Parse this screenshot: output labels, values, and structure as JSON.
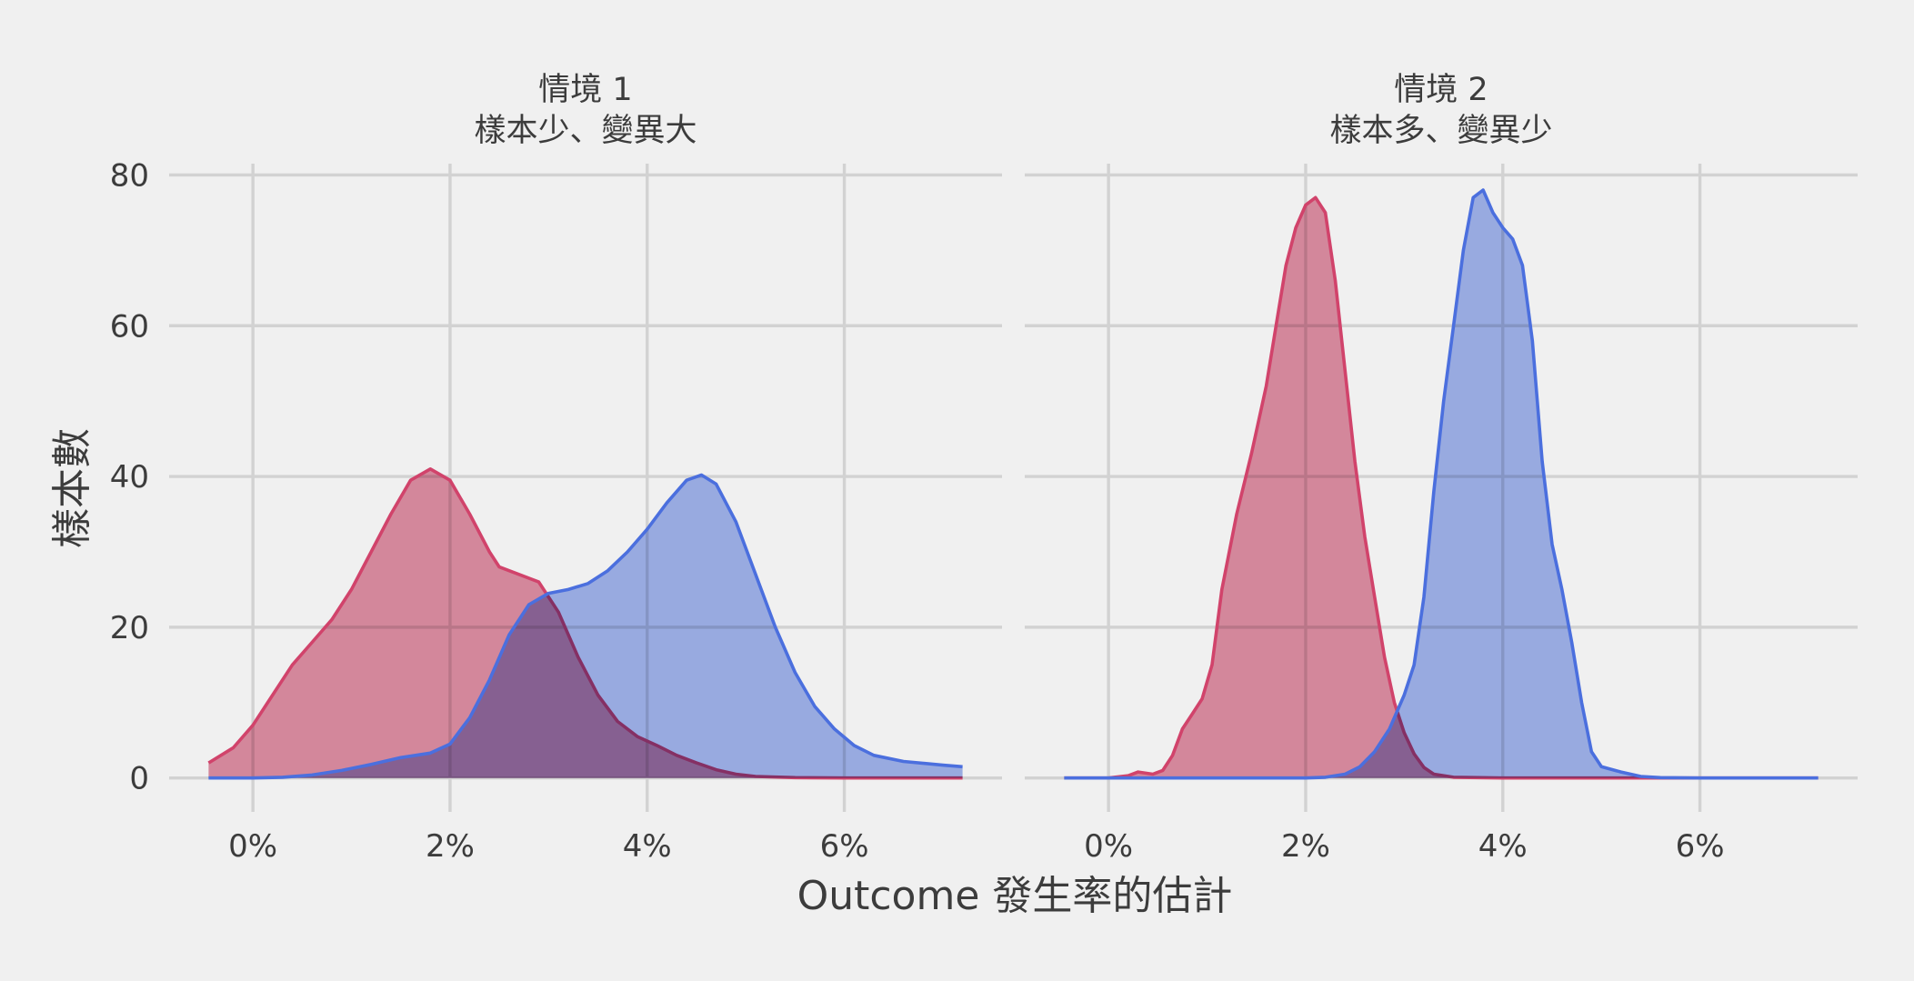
{
  "chart_data": {
    "type": "area",
    "xlabel": "Outcome 發生率的估計",
    "ylabel": "樣本數",
    "x_ticks": [
      "0%",
      "2%",
      "4%",
      "6%"
    ],
    "x_tick_values": [
      0,
      2,
      4,
      6
    ],
    "y_ticks": [
      "0",
      "20",
      "40",
      "60",
      "80"
    ],
    "y_tick_values": [
      0,
      20,
      40,
      60,
      80
    ],
    "xlim": [
      -0.85,
      7.6
    ],
    "ylim": [
      -4.5,
      81.5
    ],
    "grid": true,
    "legend": "none",
    "colors": {
      "red_line": "#d1436b",
      "red_fill": "#dc7b95",
      "blue_line": "#4b6fde",
      "blue_fill": "#8ba3ea",
      "background": "#f0f0f0",
      "grid": "#d2d2d2"
    },
    "panels": [
      {
        "title_line1": "情境 1",
        "title_line2": "樣本少、變異大",
        "series": [
          {
            "color": "red",
            "points": [
              [
                -0.45,
                2
              ],
              [
                -0.2,
                4
              ],
              [
                0,
                7
              ],
              [
                0.2,
                11
              ],
              [
                0.4,
                15
              ],
              [
                0.6,
                18
              ],
              [
                0.8,
                21
              ],
              [
                1.0,
                25
              ],
              [
                1.2,
                30
              ],
              [
                1.4,
                35
              ],
              [
                1.6,
                39.5
              ],
              [
                1.8,
                41
              ],
              [
                2.0,
                39.5
              ],
              [
                2.2,
                35
              ],
              [
                2.4,
                30
              ],
              [
                2.5,
                28
              ],
              [
                2.7,
                27
              ],
              [
                2.9,
                26
              ],
              [
                3.1,
                22
              ],
              [
                3.3,
                16
              ],
              [
                3.5,
                11
              ],
              [
                3.7,
                7.5
              ],
              [
                3.9,
                5.5
              ],
              [
                4.1,
                4.3
              ],
              [
                4.3,
                3
              ],
              [
                4.5,
                2
              ],
              [
                4.7,
                1.1
              ],
              [
                4.9,
                0.5
              ],
              [
                5.1,
                0.2
              ],
              [
                5.5,
                0.05
              ],
              [
                6.0,
                0
              ],
              [
                7.2,
                0
              ]
            ]
          },
          {
            "color": "blue",
            "points": [
              [
                -0.45,
                0
              ],
              [
                0,
                0
              ],
              [
                0.3,
                0.1
              ],
              [
                0.6,
                0.4
              ],
              [
                0.9,
                1
              ],
              [
                1.2,
                1.8
              ],
              [
                1.5,
                2.7
              ],
              [
                1.8,
                3.3
              ],
              [
                2.0,
                4.5
              ],
              [
                2.2,
                8
              ],
              [
                2.4,
                13
              ],
              [
                2.6,
                19
              ],
              [
                2.8,
                23
              ],
              [
                3.0,
                24.5
              ],
              [
                3.2,
                25
              ],
              [
                3.4,
                25.8
              ],
              [
                3.6,
                27.5
              ],
              [
                3.8,
                30
              ],
              [
                4.0,
                33
              ],
              [
                4.2,
                36.5
              ],
              [
                4.4,
                39.5
              ],
              [
                4.55,
                40.2
              ],
              [
                4.7,
                39
              ],
              [
                4.9,
                34
              ],
              [
                5.1,
                27
              ],
              [
                5.3,
                20
              ],
              [
                5.5,
                14
              ],
              [
                5.7,
                9.5
              ],
              [
                5.9,
                6.5
              ],
              [
                6.1,
                4.3
              ],
              [
                6.3,
                3
              ],
              [
                6.6,
                2.2
              ],
              [
                7.0,
                1.7
              ],
              [
                7.2,
                1.5
              ]
            ]
          }
        ]
      },
      {
        "title_line1": "情境 2",
        "title_line2": "樣本多、變異少",
        "series": [
          {
            "color": "red",
            "points": [
              [
                -0.45,
                0
              ],
              [
                0,
                0
              ],
              [
                0.2,
                0.3
              ],
              [
                0.3,
                0.8
              ],
              [
                0.45,
                0.5
              ],
              [
                0.55,
                1
              ],
              [
                0.65,
                3
              ],
              [
                0.75,
                6.5
              ],
              [
                0.85,
                8.5
              ],
              [
                0.95,
                10.5
              ],
              [
                1.05,
                15
              ],
              [
                1.15,
                25
              ],
              [
                1.3,
                35
              ],
              [
                1.45,
                43
              ],
              [
                1.6,
                52
              ],
              [
                1.7,
                60
              ],
              [
                1.8,
                68
              ],
              [
                1.9,
                73
              ],
              [
                2.0,
                76
              ],
              [
                2.1,
                77
              ],
              [
                2.2,
                75
              ],
              [
                2.3,
                66
              ],
              [
                2.4,
                54
              ],
              [
                2.5,
                42
              ],
              [
                2.6,
                32
              ],
              [
                2.7,
                24
              ],
              [
                2.8,
                16
              ],
              [
                2.9,
                10
              ],
              [
                3.0,
                6
              ],
              [
                3.1,
                3.2
              ],
              [
                3.2,
                1.4
              ],
              [
                3.3,
                0.5
              ],
              [
                3.5,
                0.1
              ],
              [
                4.0,
                0
              ],
              [
                7.2,
                0
              ]
            ]
          },
          {
            "color": "blue",
            "points": [
              [
                -0.45,
                0
              ],
              [
                2.0,
                0
              ],
              [
                2.2,
                0.1
              ],
              [
                2.4,
                0.5
              ],
              [
                2.55,
                1.5
              ],
              [
                2.7,
                3.5
              ],
              [
                2.85,
                6.5
              ],
              [
                3.0,
                11
              ],
              [
                3.1,
                15
              ],
              [
                3.2,
                24
              ],
              [
                3.3,
                38
              ],
              [
                3.4,
                50
              ],
              [
                3.5,
                60
              ],
              [
                3.6,
                70
              ],
              [
                3.7,
                77
              ],
              [
                3.8,
                78
              ],
              [
                3.9,
                75
              ],
              [
                4.0,
                73
              ],
              [
                4.1,
                71.5
              ],
              [
                4.2,
                68
              ],
              [
                4.3,
                58
              ],
              [
                4.4,
                42
              ],
              [
                4.5,
                31
              ],
              [
                4.6,
                25
              ],
              [
                4.7,
                18
              ],
              [
                4.8,
                10
              ],
              [
                4.9,
                3.5
              ],
              [
                5.0,
                1.5
              ],
              [
                5.2,
                0.8
              ],
              [
                5.4,
                0.2
              ],
              [
                5.6,
                0.05
              ],
              [
                6.0,
                0
              ],
              [
                7.2,
                0
              ]
            ]
          }
        ]
      }
    ]
  }
}
